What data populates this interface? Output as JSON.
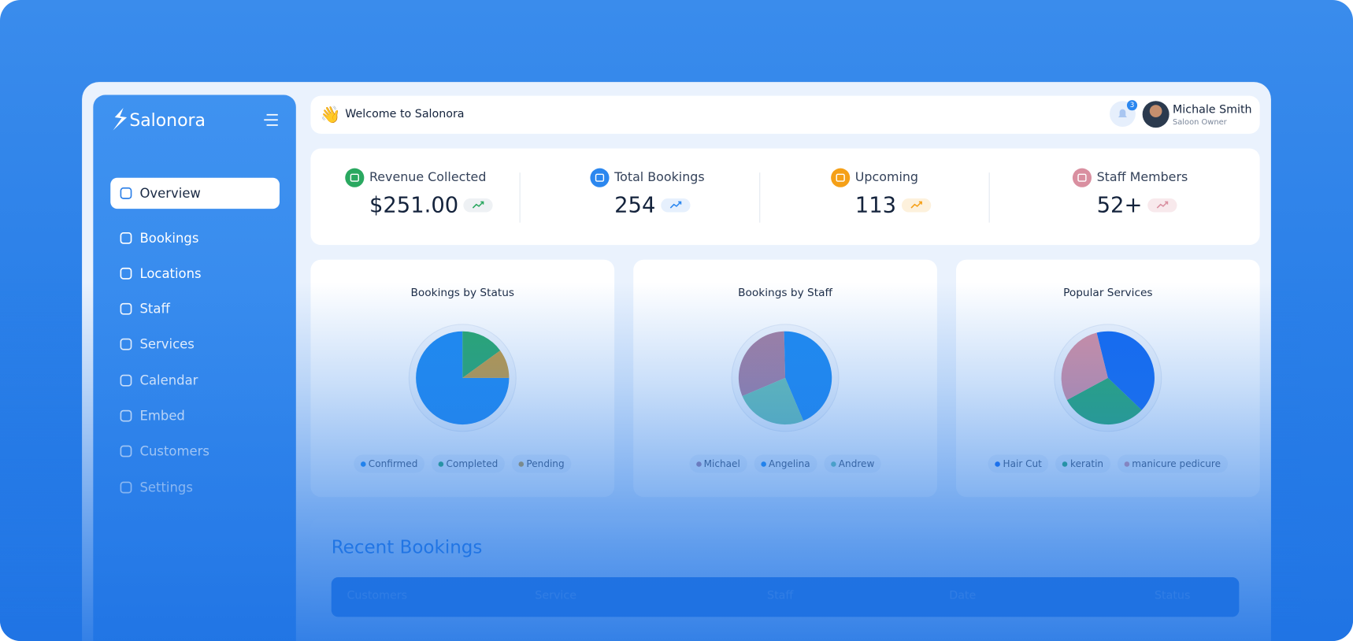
{
  "sidebar": {
    "brand": "Salonora",
    "menu": [
      "Overview",
      "Bookings",
      "Locations",
      "Staff",
      "Services",
      "Calendar",
      "Embed",
      "Customers",
      "Settings"
    ]
  },
  "header": {
    "welcome": "Welcome to Salonora",
    "notifications": 3,
    "user_name": "Michale Smith",
    "user_role": "Saloon Owner"
  },
  "stats": [
    {
      "label": "Revenue Collected",
      "value": "$251.00"
    },
    {
      "label": "Total Bookings",
      "value": "254"
    },
    {
      "label": "Upcoming",
      "value": "113"
    },
    {
      "label": "Staff Members",
      "value": "52+"
    }
  ],
  "charts": [
    {
      "type": "pie",
      "title": "Bookings by Status",
      "categories": [
        "Confirmed",
        "Completed",
        "Pending"
      ],
      "values": [
        75,
        15,
        10
      ],
      "colors": [
        "#1f8af0",
        "#2aa86a",
        "#c79a3c"
      ]
    },
    {
      "type": "pie",
      "title": "Bookings by Staff",
      "categories": [
        "Michael",
        "Angelina",
        "Andrew"
      ],
      "values": [
        31,
        44,
        25
      ],
      "colors": [
        "#a97f9e",
        "#1f8af0",
        "#6cc2b0"
      ]
    },
    {
      "type": "pie",
      "title": "Popular Services",
      "categories": [
        "Hair Cut",
        "keratin",
        "manicure pedicure"
      ],
      "values": [
        41,
        30,
        29
      ],
      "colors": [
        "#1469f0",
        "#29a96c",
        "#d98fa0"
      ]
    }
  ],
  "recent_bookings": {
    "title": "Recent Bookings",
    "columns": [
      "Customers",
      "Service",
      "Staff",
      "Date",
      "Status"
    ]
  }
}
